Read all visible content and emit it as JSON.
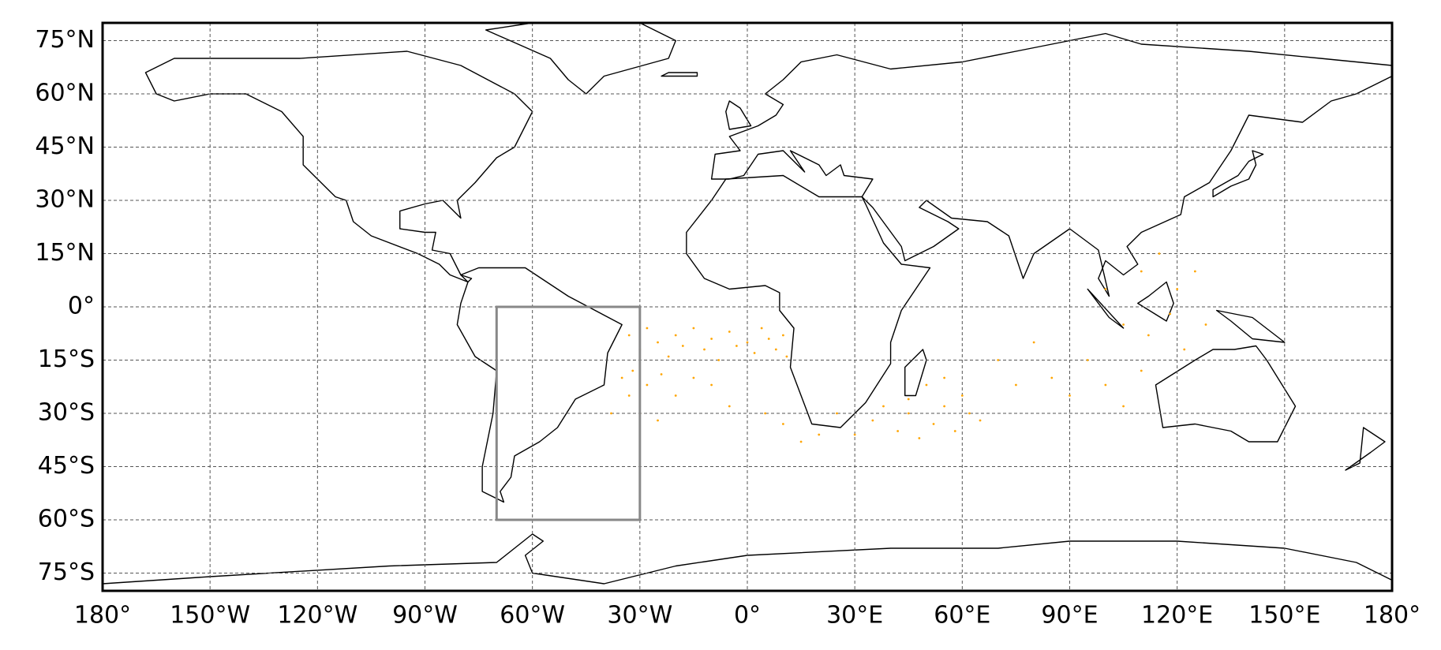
{
  "chart_data": {
    "type": "scatter",
    "xlim": [
      -180,
      180
    ],
    "ylim": [
      -80,
      80
    ],
    "xticks": [
      {
        "value": -180,
        "label": "180°"
      },
      {
        "value": -150,
        "label": "150°W"
      },
      {
        "value": -120,
        "label": "120°W"
      },
      {
        "value": -90,
        "label": "90°W"
      },
      {
        "value": -60,
        "label": "60°W"
      },
      {
        "value": -30,
        "label": "30°W"
      },
      {
        "value": 0,
        "label": "0°"
      },
      {
        "value": 30,
        "label": "30°E"
      },
      {
        "value": 60,
        "label": "60°E"
      },
      {
        "value": 90,
        "label": "90°E"
      },
      {
        "value": 120,
        "label": "120°E"
      },
      {
        "value": 150,
        "label": "150°E"
      },
      {
        "value": 180,
        "label": "180°"
      }
    ],
    "yticks": [
      {
        "value": 75,
        "label": "75°N"
      },
      {
        "value": 60,
        "label": "60°N"
      },
      {
        "value": 45,
        "label": "45°N"
      },
      {
        "value": 30,
        "label": "30°N"
      },
      {
        "value": 15,
        "label": "15°N"
      },
      {
        "value": 0,
        "label": "0°"
      },
      {
        "value": -15,
        "label": "15°S"
      },
      {
        "value": -30,
        "label": "30°S"
      },
      {
        "value": -45,
        "label": "45°S"
      },
      {
        "value": -60,
        "label": "60°S"
      },
      {
        "value": -75,
        "label": "75°S"
      }
    ],
    "grid": true,
    "color": "#ffa500",
    "x": [
      -33,
      -30,
      -28,
      -25,
      -22,
      -20,
      -18,
      -15,
      -12,
      -10,
      -8,
      -5,
      -3,
      0,
      2,
      4,
      6,
      8,
      10,
      11,
      -32,
      -35,
      -28,
      -24,
      -20,
      -15,
      -10,
      -5,
      -38,
      -30,
      -25,
      -33,
      5,
      10,
      15,
      20,
      25,
      30,
      35,
      38,
      42,
      45,
      48,
      52,
      55,
      58,
      62,
      65,
      50,
      55,
      60,
      45,
      70,
      80,
      85,
      95,
      100,
      105,
      110,
      90,
      75,
      100,
      110,
      115,
      120,
      125,
      118,
      112,
      122,
      128,
      105
    ],
    "values": [
      -8,
      -12,
      -6,
      -10,
      -14,
      -8,
      -11,
      -6,
      -12,
      -9,
      -15,
      -7,
      -11,
      -10,
      -13,
      -6,
      -9,
      -12,
      -8,
      -14,
      -18,
      -20,
      -22,
      -19,
      -25,
      -20,
      -22,
      -28,
      -30,
      -30,
      -32,
      -25,
      -30,
      -33,
      -38,
      -36,
      -30,
      -36,
      -32,
      -28,
      -35,
      -30,
      -37,
      -33,
      -28,
      -35,
      -30,
      -32,
      -22,
      -20,
      -25,
      -26,
      -15,
      -10,
      -20,
      -15,
      -22,
      -28,
      -18,
      -25,
      -22,
      5,
      10,
      15,
      5,
      10,
      -2,
      -8,
      -12,
      -5,
      -5
    ],
    "region": {
      "lon": [
        -70,
        -30
      ],
      "lat": [
        -60,
        0
      ],
      "color": "#888888"
    }
  }
}
